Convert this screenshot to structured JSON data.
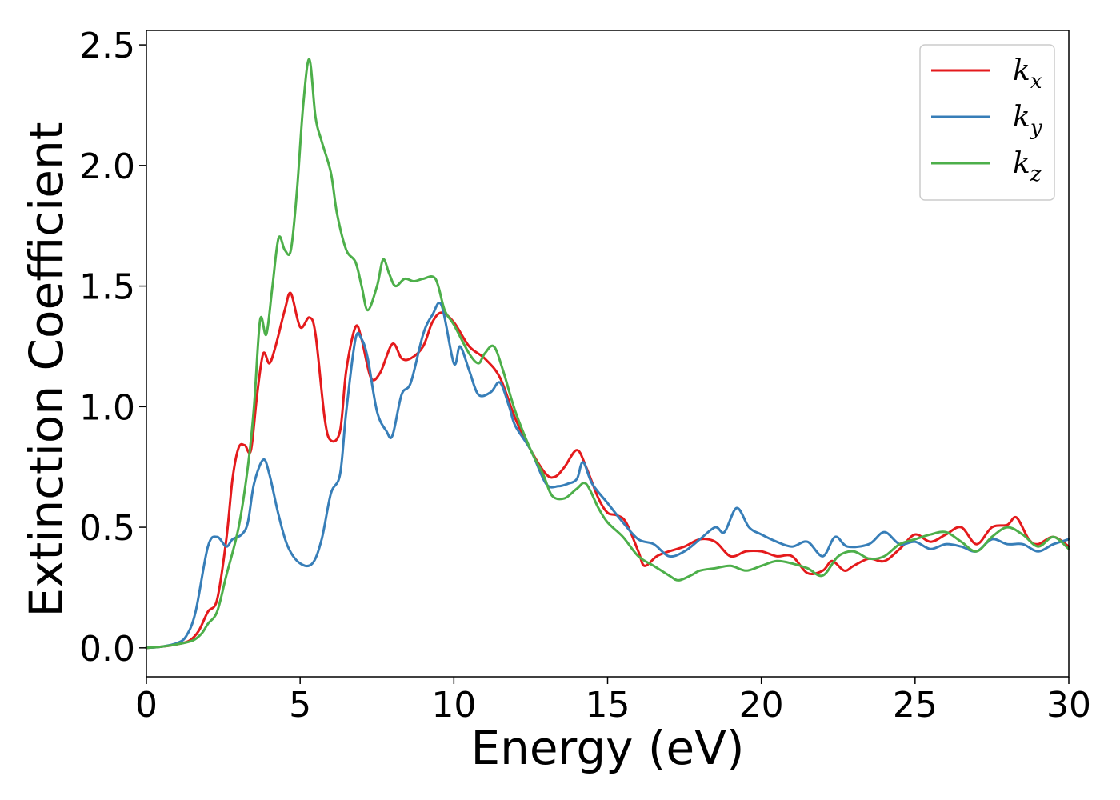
{
  "chart_data": {
    "type": "line",
    "xlabel": "Energy (eV)",
    "ylabel": "Extinction Coefficient",
    "xlim": [
      0,
      30
    ],
    "ylim": [
      -0.12,
      2.56
    ],
    "xticks": [
      0,
      5,
      10,
      15,
      20,
      25,
      30
    ],
    "xtick_labels": [
      "0",
      "5",
      "10",
      "15",
      "20",
      "25",
      "30"
    ],
    "yticks": [
      0.0,
      0.5,
      1.0,
      1.5,
      2.0,
      2.5
    ],
    "ytick_labels": [
      "0.0",
      "0.5",
      "1.0",
      "1.5",
      "2.0",
      "2.5"
    ],
    "grid": false,
    "legend_position": "top-right",
    "series": [
      {
        "name": "k_x",
        "label_main": "k",
        "label_sub": "x",
        "color": "#e41a1c",
        "points": [
          [
            0,
            0
          ],
          [
            0.5,
            0.005
          ],
          [
            1,
            0.015
          ],
          [
            1.4,
            0.03
          ],
          [
            1.7,
            0.07
          ],
          [
            2.0,
            0.15
          ],
          [
            2.3,
            0.2
          ],
          [
            2.6,
            0.45
          ],
          [
            2.8,
            0.7
          ],
          [
            3.0,
            0.83
          ],
          [
            3.2,
            0.84
          ],
          [
            3.4,
            0.82
          ],
          [
            3.6,
            1.05
          ],
          [
            3.8,
            1.22
          ],
          [
            4.0,
            1.18
          ],
          [
            4.2,
            1.25
          ],
          [
            4.5,
            1.4
          ],
          [
            4.7,
            1.47
          ],
          [
            5.0,
            1.33
          ],
          [
            5.3,
            1.37
          ],
          [
            5.5,
            1.3
          ],
          [
            5.8,
            0.95
          ],
          [
            6.0,
            0.86
          ],
          [
            6.3,
            0.9
          ],
          [
            6.5,
            1.15
          ],
          [
            6.8,
            1.33
          ],
          [
            7.0,
            1.28
          ],
          [
            7.3,
            1.12
          ],
          [
            7.6,
            1.14
          ],
          [
            8.0,
            1.26
          ],
          [
            8.3,
            1.2
          ],
          [
            8.6,
            1.2
          ],
          [
            9.0,
            1.25
          ],
          [
            9.3,
            1.35
          ],
          [
            9.6,
            1.39
          ],
          [
            10.0,
            1.35
          ],
          [
            10.5,
            1.25
          ],
          [
            11.0,
            1.2
          ],
          [
            11.5,
            1.12
          ],
          [
            12.0,
            0.95
          ],
          [
            12.5,
            0.82
          ],
          [
            13.0,
            0.72
          ],
          [
            13.3,
            0.71
          ],
          [
            13.6,
            0.75
          ],
          [
            14.0,
            0.82
          ],
          [
            14.3,
            0.75
          ],
          [
            14.7,
            0.62
          ],
          [
            15.0,
            0.56
          ],
          [
            15.3,
            0.55
          ],
          [
            15.6,
            0.52
          ],
          [
            16.0,
            0.4
          ],
          [
            16.2,
            0.34
          ],
          [
            16.6,
            0.38
          ],
          [
            17.0,
            0.4
          ],
          [
            17.5,
            0.42
          ],
          [
            18.0,
            0.45
          ],
          [
            18.5,
            0.44
          ],
          [
            19.0,
            0.38
          ],
          [
            19.5,
            0.4
          ],
          [
            20.0,
            0.4
          ],
          [
            20.5,
            0.38
          ],
          [
            21.0,
            0.38
          ],
          [
            21.5,
            0.31
          ],
          [
            22.0,
            0.32
          ],
          [
            22.3,
            0.36
          ],
          [
            22.7,
            0.32
          ],
          [
            23.0,
            0.34
          ],
          [
            23.5,
            0.37
          ],
          [
            24.0,
            0.36
          ],
          [
            24.5,
            0.41
          ],
          [
            25.0,
            0.47
          ],
          [
            25.5,
            0.44
          ],
          [
            26.0,
            0.47
          ],
          [
            26.5,
            0.5
          ],
          [
            27.0,
            0.43
          ],
          [
            27.5,
            0.5
          ],
          [
            28.0,
            0.51
          ],
          [
            28.3,
            0.54
          ],
          [
            28.7,
            0.45
          ],
          [
            29.0,
            0.43
          ],
          [
            29.5,
            0.46
          ],
          [
            30,
            0.42
          ]
        ]
      },
      {
        "name": "k_y",
        "label_main": "k",
        "label_sub": "y",
        "color": "#377eb8",
        "points": [
          [
            0,
            0
          ],
          [
            0.5,
            0.005
          ],
          [
            1.0,
            0.02
          ],
          [
            1.3,
            0.05
          ],
          [
            1.6,
            0.15
          ],
          [
            2.0,
            0.42
          ],
          [
            2.3,
            0.46
          ],
          [
            2.6,
            0.42
          ],
          [
            2.8,
            0.45
          ],
          [
            3.1,
            0.47
          ],
          [
            3.3,
            0.52
          ],
          [
            3.5,
            0.68
          ],
          [
            3.8,
            0.78
          ],
          [
            4.0,
            0.72
          ],
          [
            4.3,
            0.55
          ],
          [
            4.6,
            0.42
          ],
          [
            5.0,
            0.35
          ],
          [
            5.4,
            0.35
          ],
          [
            5.7,
            0.45
          ],
          [
            6.0,
            0.64
          ],
          [
            6.3,
            0.72
          ],
          [
            6.5,
            0.98
          ],
          [
            6.8,
            1.28
          ],
          [
            7.0,
            1.28
          ],
          [
            7.2,
            1.2
          ],
          [
            7.5,
            0.98
          ],
          [
            7.8,
            0.9
          ],
          [
            8.0,
            0.88
          ],
          [
            8.3,
            1.05
          ],
          [
            8.6,
            1.1
          ],
          [
            9.0,
            1.3
          ],
          [
            9.3,
            1.38
          ],
          [
            9.6,
            1.42
          ],
          [
            10.0,
            1.18
          ],
          [
            10.2,
            1.25
          ],
          [
            10.5,
            1.15
          ],
          [
            10.8,
            1.05
          ],
          [
            11.2,
            1.06
          ],
          [
            11.5,
            1.1
          ],
          [
            11.8,
            1.0
          ],
          [
            12.0,
            0.92
          ],
          [
            12.5,
            0.82
          ],
          [
            13.0,
            0.68
          ],
          [
            13.4,
            0.67
          ],
          [
            13.7,
            0.68
          ],
          [
            14.0,
            0.7
          ],
          [
            14.2,
            0.77
          ],
          [
            14.5,
            0.68
          ],
          [
            15.0,
            0.6
          ],
          [
            15.5,
            0.52
          ],
          [
            16.0,
            0.45
          ],
          [
            16.5,
            0.43
          ],
          [
            17.0,
            0.38
          ],
          [
            17.5,
            0.4
          ],
          [
            18.0,
            0.45
          ],
          [
            18.5,
            0.5
          ],
          [
            18.8,
            0.48
          ],
          [
            19.2,
            0.58
          ],
          [
            19.6,
            0.5
          ],
          [
            20.0,
            0.47
          ],
          [
            20.5,
            0.44
          ],
          [
            21.0,
            0.42
          ],
          [
            21.5,
            0.44
          ],
          [
            22.0,
            0.38
          ],
          [
            22.4,
            0.46
          ],
          [
            22.8,
            0.42
          ],
          [
            23.5,
            0.43
          ],
          [
            24.0,
            0.48
          ],
          [
            24.5,
            0.43
          ],
          [
            25.0,
            0.44
          ],
          [
            25.5,
            0.41
          ],
          [
            26.0,
            0.43
          ],
          [
            26.5,
            0.42
          ],
          [
            27.0,
            0.4
          ],
          [
            27.5,
            0.45
          ],
          [
            28.0,
            0.43
          ],
          [
            28.5,
            0.43
          ],
          [
            29.0,
            0.4
          ],
          [
            29.5,
            0.43
          ],
          [
            30,
            0.45
          ]
        ]
      },
      {
        "name": "k_z",
        "label_main": "k",
        "label_sub": "z",
        "color": "#4daf4a",
        "points": [
          [
            0,
            0
          ],
          [
            0.5,
            0.005
          ],
          [
            1.0,
            0.015
          ],
          [
            1.5,
            0.03
          ],
          [
            1.8,
            0.06
          ],
          [
            2.0,
            0.1
          ],
          [
            2.3,
            0.15
          ],
          [
            2.6,
            0.3
          ],
          [
            3.0,
            0.5
          ],
          [
            3.3,
            0.75
          ],
          [
            3.5,
            1.0
          ],
          [
            3.7,
            1.36
          ],
          [
            3.9,
            1.3
          ],
          [
            4.1,
            1.5
          ],
          [
            4.3,
            1.7
          ],
          [
            4.5,
            1.65
          ],
          [
            4.7,
            1.65
          ],
          [
            4.9,
            1.9
          ],
          [
            5.1,
            2.25
          ],
          [
            5.3,
            2.44
          ],
          [
            5.5,
            2.2
          ],
          [
            5.7,
            2.1
          ],
          [
            6.0,
            1.97
          ],
          [
            6.2,
            1.8
          ],
          [
            6.5,
            1.65
          ],
          [
            6.8,
            1.6
          ],
          [
            7.0,
            1.5
          ],
          [
            7.2,
            1.4
          ],
          [
            7.5,
            1.5
          ],
          [
            7.7,
            1.61
          ],
          [
            7.9,
            1.55
          ],
          [
            8.1,
            1.5
          ],
          [
            8.4,
            1.53
          ],
          [
            8.7,
            1.52
          ],
          [
            9.0,
            1.53
          ],
          [
            9.4,
            1.53
          ],
          [
            9.7,
            1.4
          ],
          [
            10.0,
            1.34
          ],
          [
            10.5,
            1.22
          ],
          [
            10.8,
            1.18
          ],
          [
            11.0,
            1.22
          ],
          [
            11.3,
            1.25
          ],
          [
            11.6,
            1.15
          ],
          [
            12.0,
            0.98
          ],
          [
            12.5,
            0.82
          ],
          [
            12.9,
            0.72
          ],
          [
            13.2,
            0.63
          ],
          [
            13.6,
            0.62
          ],
          [
            14.0,
            0.66
          ],
          [
            14.3,
            0.68
          ],
          [
            14.7,
            0.58
          ],
          [
            15.0,
            0.52
          ],
          [
            15.5,
            0.46
          ],
          [
            16.0,
            0.38
          ],
          [
            16.5,
            0.34
          ],
          [
            17.0,
            0.3
          ],
          [
            17.3,
            0.28
          ],
          [
            17.7,
            0.3
          ],
          [
            18.0,
            0.32
          ],
          [
            18.5,
            0.33
          ],
          [
            19.0,
            0.34
          ],
          [
            19.5,
            0.32
          ],
          [
            20.0,
            0.34
          ],
          [
            20.5,
            0.36
          ],
          [
            21.0,
            0.35
          ],
          [
            21.5,
            0.33
          ],
          [
            22.0,
            0.3
          ],
          [
            22.5,
            0.38
          ],
          [
            23.0,
            0.4
          ],
          [
            23.5,
            0.37
          ],
          [
            24.0,
            0.38
          ],
          [
            24.5,
            0.43
          ],
          [
            25.0,
            0.45
          ],
          [
            25.5,
            0.47
          ],
          [
            26.0,
            0.48
          ],
          [
            26.5,
            0.44
          ],
          [
            27.0,
            0.4
          ],
          [
            27.5,
            0.46
          ],
          [
            28.0,
            0.5
          ],
          [
            28.5,
            0.47
          ],
          [
            29.0,
            0.42
          ],
          [
            29.5,
            0.46
          ],
          [
            30,
            0.41
          ]
        ]
      }
    ]
  }
}
